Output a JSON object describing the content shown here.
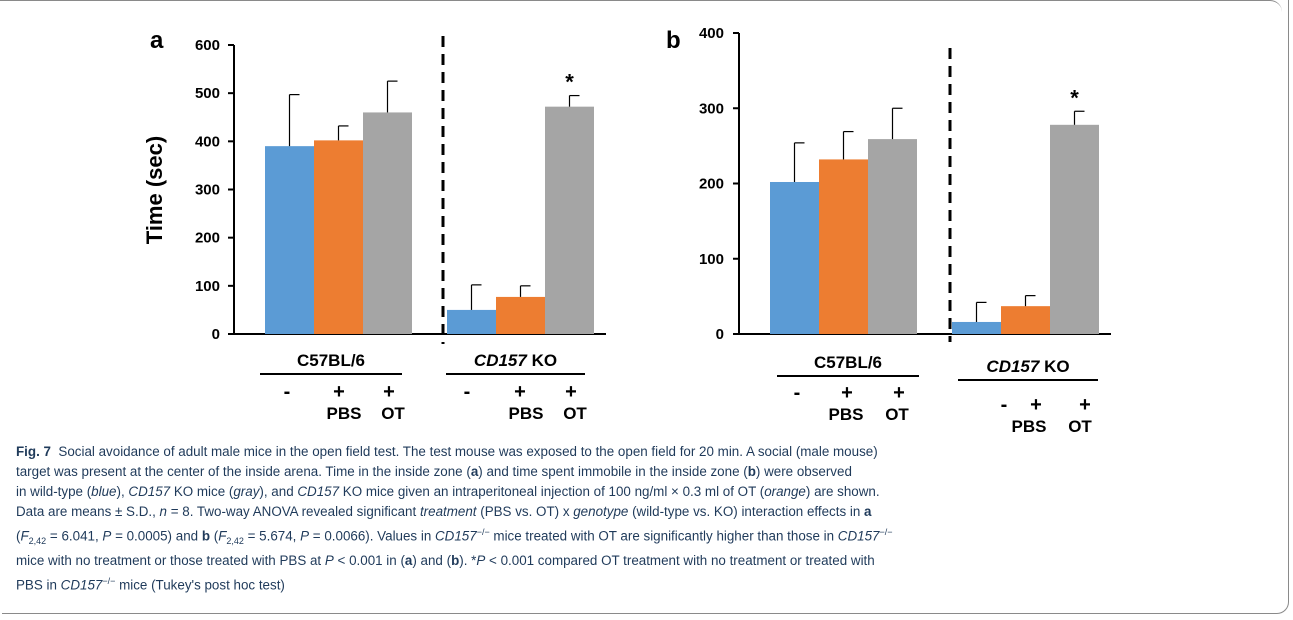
{
  "figure": {
    "panels": [
      {
        "letter": "a",
        "ylabel": "Time (sec)"
      },
      {
        "letter": "b",
        "ylabel": ""
      }
    ],
    "groups": [
      "C57BL/6",
      "CD157 KO"
    ],
    "group_italic_part": "CD157",
    "group_ko_suffix": " KO",
    "treatment_symbols": [
      "-",
      "+",
      "+"
    ],
    "treatment_labels": [
      "PBS",
      "OT"
    ],
    "significance_mark": "*"
  },
  "chart_data": [
    {
      "type": "bar",
      "panel": "a",
      "ylabel": "Time (sec)",
      "ylim": [
        0,
        600
      ],
      "yticks": [
        0,
        100,
        200,
        300,
        400,
        500,
        600
      ],
      "groups": [
        "C57BL/6",
        "CD157 KO"
      ],
      "colors": [
        "#5b9bd5",
        "#ed7d31",
        "#a5a5a5"
      ],
      "values": [
        [
          390,
          402,
          460
        ],
        [
          50,
          77,
          472
        ]
      ],
      "errors": [
        [
          107,
          30,
          65
        ],
        [
          52,
          23,
          23
        ]
      ],
      "significant": [
        [
          false,
          false,
          false
        ],
        [
          false,
          false,
          true
        ]
      ]
    },
    {
      "type": "bar",
      "panel": "b",
      "ylabel": "",
      "ylim": [
        0,
        400
      ],
      "yticks": [
        0,
        100,
        200,
        300,
        400
      ],
      "groups": [
        "C57BL/6",
        "CD157 KO"
      ],
      "colors": [
        "#5b9bd5",
        "#ed7d31",
        "#a5a5a5"
      ],
      "values": [
        [
          202,
          232,
          259
        ],
        [
          16,
          37,
          278
        ]
      ],
      "errors": [
        [
          52,
          37,
          41
        ],
        [
          26,
          14,
          18
        ]
      ],
      "significant": [
        [
          false,
          false,
          false
        ],
        [
          false,
          false,
          true
        ]
      ]
    }
  ],
  "caption": {
    "fig_label": "Fig. 7",
    "lines": [
      "Social avoidance of adult male mice in the open field test. The test mouse was exposed to the open field for 20 min. A social (male mouse)",
      "target was present at the center of the inside arena. Time in the inside zone (a) and time spent immobile in the inside zone (b) were observed",
      "in wild-type (blue), CD157 KO mice (gray), and CD157 KO mice given an intraperitoneal injection of 100 ng/ml × 0.3 ml of OT (orange) are shown.",
      "Data are means ± S.D., n = 8. Two-way ANOVA revealed significant treatment (PBS vs. OT) x genotype (wild-type vs. KO) interaction effects in a",
      "(F2,42 = 6.041, P = 0.0005) and b (F2,42 = 5.674, P = 0.0066). Values in CD157−/− mice treated with OT are significantly higher than those in CD157−/−",
      "mice with no treatment or those treated with PBS at P < 0.001 in (a) and (b). *P < 0.001 compared OT treatment with no treatment or treated with",
      "PBS in CD157−/− mice (Tukey's post hoc test)"
    ]
  }
}
